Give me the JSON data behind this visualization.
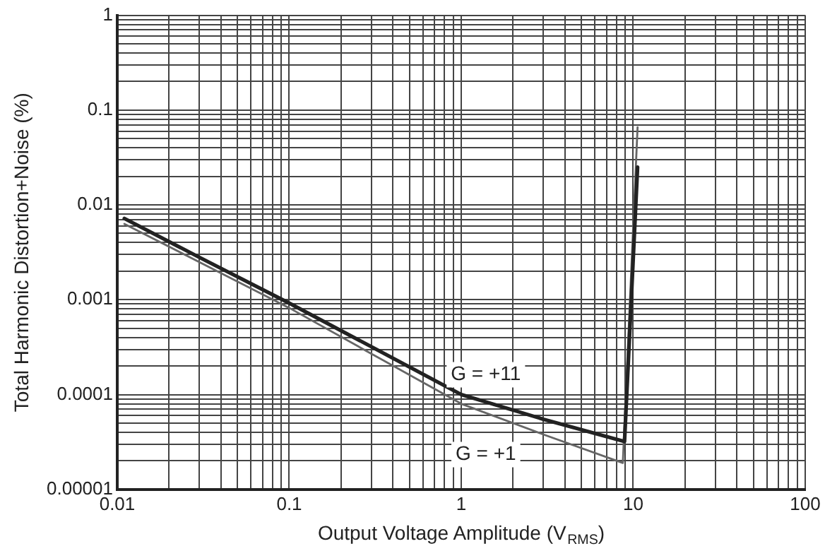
{
  "chart_data": {
    "type": "line",
    "xlabel": "Output Voltage Amplitude (V$_{RMS}$)",
    "ylabel": "Total Harmonic Distortion+Noise (%)",
    "log": "xy",
    "grid": true,
    "legend": false,
    "marker": "none",
    "line_style": "solid",
    "xlim": [
      0.01,
      100
    ],
    "ylim": [
      1e-05,
      1
    ],
    "xticks": [
      0.01,
      {
        "value": 0.02,
        "label": null
      },
      {
        "value": 0.03,
        "label": null
      },
      {
        "value": 0.04,
        "label": null
      },
      {
        "value": 0.05,
        "label": null
      },
      {
        "value": 0.06,
        "label": null
      },
      {
        "value": 0.07,
        "label": null
      },
      {
        "value": 0.08,
        "label": null
      },
      {
        "value": 0.09,
        "label": null
      },
      0.1,
      {
        "value": 0.2,
        "label": null
      },
      {
        "value": 0.3,
        "label": null
      },
      {
        "value": 0.4,
        "label": null
      },
      {
        "value": 0.5,
        "label": null
      },
      {
        "value": 0.6,
        "label": null
      },
      {
        "value": 0.7,
        "label": null
      },
      {
        "value": 0.8,
        "label": null
      },
      {
        "value": 0.9,
        "label": null
      },
      1,
      {
        "value": 2,
        "label": null
      },
      {
        "value": 3,
        "label": null
      },
      {
        "value": 4,
        "label": null
      },
      {
        "value": 5,
        "label": null
      },
      {
        "value": 6,
        "label": null
      },
      {
        "value": 7,
        "label": null
      },
      {
        "value": 8,
        "label": null
      },
      {
        "value": 9,
        "label": null
      },
      10,
      {
        "value": 20,
        "label": null
      },
      {
        "value": 30,
        "label": null
      },
      {
        "value": 40,
        "label": null
      },
      {
        "value": 50,
        "label": null
      },
      {
        "value": 60,
        "label": null
      },
      {
        "value": 70,
        "label": null
      },
      {
        "value": 80,
        "label": null
      },
      {
        "value": 90,
        "label": null
      },
      100
    ],
    "yticks": [
      {
        "value": 1e-05,
        "label": "0.00001"
      },
      {
        "value": 2e-05,
        "label": null
      },
      {
        "value": 3e-05,
        "label": null
      },
      {
        "value": 4e-05,
        "label": null
      },
      {
        "value": 5e-05,
        "label": null
      },
      {
        "value": 6e-05,
        "label": null
      },
      {
        "value": 7e-05,
        "label": null
      },
      {
        "value": 8e-05,
        "label": null
      },
      {
        "value": 9e-05,
        "label": null
      },
      0.0001,
      {
        "value": 0.0002,
        "label": null
      },
      {
        "value": 0.0003,
        "label": null
      },
      {
        "value": 0.0004,
        "label": null
      },
      {
        "value": 0.0005,
        "label": null
      },
      {
        "value": 0.0006,
        "label": null
      },
      {
        "value": 0.0007,
        "label": null
      },
      {
        "value": 0.0008,
        "label": null
      },
      {
        "value": 0.0009,
        "label": null
      },
      0.001,
      {
        "value": 0.002,
        "label": null
      },
      {
        "value": 0.003,
        "label": null
      },
      {
        "value": 0.004,
        "label": null
      },
      {
        "value": 0.005,
        "label": null
      },
      {
        "value": 0.006,
        "label": null
      },
      {
        "value": 0.007,
        "label": null
      },
      {
        "value": 0.008,
        "label": null
      },
      {
        "value": 0.009,
        "label": null
      },
      0.01,
      {
        "value": 0.02,
        "label": null
      },
      {
        "value": 0.03,
        "label": null
      },
      {
        "value": 0.04,
        "label": null
      },
      {
        "value": 0.05,
        "label": null
      },
      {
        "value": 0.06,
        "label": null
      },
      {
        "value": 0.07,
        "label": null
      },
      {
        "value": 0.08,
        "label": null
      },
      {
        "value": 0.09,
        "label": null
      },
      0.1,
      {
        "value": 0.2,
        "label": null
      },
      {
        "value": 0.3,
        "label": null
      },
      {
        "value": 0.4,
        "label": null
      },
      {
        "value": 0.5,
        "label": null
      },
      {
        "value": 0.6,
        "label": null
      },
      {
        "value": 0.7,
        "label": null
      },
      {
        "value": 0.8,
        "label": null
      },
      {
        "value": 0.9,
        "label": null
      },
      1
    ],
    "series": [
      {
        "name": "G = +11",
        "color": "#222222",
        "x": [
          0.011,
          0.03,
          0.1,
          0.3,
          1,
          3,
          8.9,
          10.6
        ],
        "values": [
          0.0072,
          0.0028,
          0.00092,
          0.00032,
          0.0001,
          5.5e-05,
          3.2e-05,
          0.025
        ]
      },
      {
        "name": "G = +1",
        "color": "#666666",
        "x": [
          0.011,
          0.03,
          0.1,
          0.3,
          1,
          3,
          8.7,
          10.6
        ],
        "values": [
          0.0063,
          0.0025,
          0.00082,
          0.00027,
          8e-05,
          3.8e-05,
          1.9e-05,
          0.066
        ]
      }
    ]
  }
}
